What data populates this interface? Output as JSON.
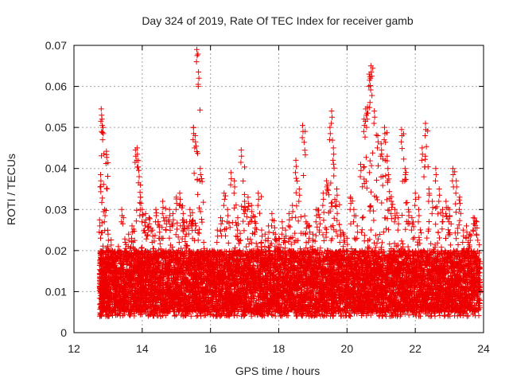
{
  "chart_data": {
    "type": "scatter",
    "title": "Day 324 of 2019, Rate Of TEC Index for receiver gamb",
    "xlabel": "GPS time / hours",
    "ylabel": "ROTI / TECUs",
    "xlim": [
      12,
      24
    ],
    "ylim": [
      0,
      0.07
    ],
    "x_ticks": [
      12,
      14,
      16,
      18,
      20,
      22,
      24
    ],
    "x_tick_labels": [
      "12",
      "14",
      "16",
      "18",
      "20",
      "22",
      "24"
    ],
    "y_ticks": [
      0,
      0.01,
      0.02,
      0.03,
      0.04,
      0.05,
      0.06,
      0.07
    ],
    "y_tick_labels": [
      "0",
      "0.01",
      "0.02",
      "0.03",
      "0.04",
      "0.05",
      "0.06",
      "0.07"
    ],
    "grid": true,
    "marker": "+",
    "marker_color": "#ee0000",
    "series": [
      {
        "name": "ROTI",
        "x": [
          12.75,
          12.78,
          12.8,
          12.82,
          12.85,
          12.9,
          12.95,
          13.0,
          13.1,
          13.2,
          13.3,
          13.4,
          13.5,
          13.6,
          13.7,
          13.8,
          13.85,
          13.9,
          13.95,
          14.0,
          14.1,
          14.2,
          14.3,
          14.4,
          14.5,
          14.6,
          14.7,
          14.8,
          14.9,
          15.0,
          15.1,
          15.2,
          15.3,
          15.4,
          15.5,
          15.55,
          15.6,
          15.65,
          15.7,
          15.8,
          15.9,
          16.0,
          16.1,
          16.2,
          16.3,
          16.4,
          16.5,
          16.6,
          16.7,
          16.8,
          16.9,
          17.0,
          17.1,
          17.2,
          17.3,
          17.4,
          17.5,
          17.6,
          17.7,
          17.8,
          17.9,
          18.0,
          18.1,
          18.2,
          18.3,
          18.4,
          18.5,
          18.6,
          18.7,
          18.8,
          18.9,
          19.0,
          19.1,
          19.2,
          19.3,
          19.4,
          19.5,
          19.55,
          19.6,
          19.7,
          19.8,
          19.9,
          20.0,
          20.1,
          20.2,
          20.3,
          20.4,
          20.5,
          20.55,
          20.6,
          20.65,
          20.7,
          20.8,
          20.9,
          21.0,
          21.1,
          21.2,
          21.3,
          21.4,
          21.5,
          21.6,
          21.7,
          21.8,
          21.9,
          22.0,
          22.1,
          22.2,
          22.3,
          22.4,
          22.5,
          22.6,
          22.7,
          22.8,
          22.9,
          23.0,
          23.1,
          23.2,
          23.3,
          23.4,
          23.5,
          23.6,
          23.7,
          23.8
        ],
        "y_peak": [
          0.0275,
          0.0385,
          0.0545,
          0.052,
          0.05,
          0.03,
          0.0442,
          0.024,
          0.02,
          0.019,
          0.021,
          0.03,
          0.022,
          0.024,
          0.026,
          0.0445,
          0.045,
          0.0395,
          0.033,
          0.03,
          0.029,
          0.028,
          0.025,
          0.03,
          0.026,
          0.032,
          0.028,
          0.03,
          0.029,
          0.033,
          0.034,
          0.029,
          0.027,
          0.03,
          0.05,
          0.048,
          0.069,
          0.0635,
          0.04,
          0.022,
          0.02,
          0.018,
          0.02,
          0.025,
          0.028,
          0.034,
          0.03,
          0.039,
          0.037,
          0.028,
          0.0445,
          0.032,
          0.033,
          0.031,
          0.027,
          0.034,
          0.025,
          0.024,
          0.026,
          0.029,
          0.024,
          0.023,
          0.027,
          0.025,
          0.029,
          0.031,
          0.042,
          0.035,
          0.0505,
          0.027,
          0.026,
          0.024,
          0.03,
          0.028,
          0.034,
          0.037,
          0.05,
          0.054,
          0.045,
          0.035,
          0.025,
          0.024,
          0.023,
          0.033,
          0.03,
          0.026,
          0.041,
          0.052,
          0.0545,
          0.055,
          0.063,
          0.065,
          0.054,
          0.048,
          0.046,
          0.05,
          0.04,
          0.032,
          0.03,
          0.028,
          0.0495,
          0.04,
          0.03,
          0.028,
          0.034,
          0.03,
          0.045,
          0.051,
          0.035,
          0.032,
          0.04,
          0.035,
          0.03,
          0.032,
          0.03,
          0.04,
          0.037,
          0.033,
          0.025,
          0.026,
          0.024,
          0.028,
          0.027
        ],
        "y_floor": 0.004,
        "y_typical_range": [
          0.005,
          0.02
        ],
        "note": "Dense field of several thousand '+' points; listed values are approximate upper-envelope values per time bin, with the bulk of points between 0.005 and 0.02 TECU."
      }
    ]
  }
}
